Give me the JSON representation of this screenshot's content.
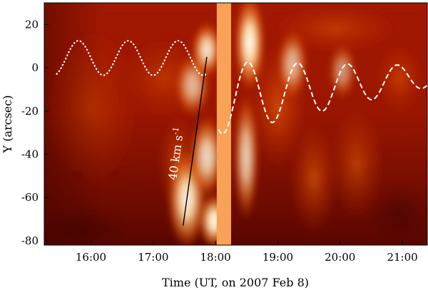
{
  "chart_data": {
    "type": "heatmap",
    "xlabel": "Time (UT, on 2007 Feb 8)",
    "ylabel": "Y (arcsec)",
    "x_unit": "hours UT",
    "xlim": [
      15.25,
      21.4
    ],
    "ylim": [
      -82,
      30
    ],
    "xticks": [
      {
        "value": 16,
        "label": "16:00"
      },
      {
        "value": 17,
        "label": "17:00"
      },
      {
        "value": 18,
        "label": "18:00"
      },
      {
        "value": 19,
        "label": "19:00"
      },
      {
        "value": 20,
        "label": "20:00"
      },
      {
        "value": 21,
        "label": "21:00"
      }
    ],
    "yticks": [
      {
        "value": 20,
        "label": "20"
      },
      {
        "value": 0,
        "label": "0"
      },
      {
        "value": -20,
        "label": "-20"
      },
      {
        "value": -40,
        "label": "-40"
      },
      {
        "value": -60,
        "label": "-60"
      },
      {
        "value": -80,
        "label": "-80"
      }
    ],
    "colormap": [
      "#3a0000",
      "#8b1000",
      "#c83000",
      "#f06a10",
      "#fbb060",
      "#ffffff"
    ],
    "data_gap": {
      "x_start": 18.02,
      "x_end": 18.25,
      "color": "#f7a257"
    },
    "oscillations": [
      {
        "style": "dotted",
        "color": "#ffffff",
        "x_start": 15.45,
        "x_end": 17.85,
        "period_hours": 0.8,
        "amplitude": 8,
        "center_y": 4.5,
        "phase_peak_x": 15.8
      },
      {
        "style": "dashed",
        "color": "#ffffff",
        "x_start": 18.05,
        "x_end": 21.4,
        "period_hours": 0.8,
        "amplitude_start": 17,
        "amplitude_end": 5,
        "center_y_start": -14,
        "center_y_end": -4,
        "phase_peak_x": 18.52
      }
    ],
    "speed_line": {
      "x_start": 17.48,
      "y_start": -73,
      "x_end": 17.86,
      "y_end": 5,
      "color": "#000000"
    },
    "annotation": {
      "text": "40 km s",
      "superscript": "-1",
      "x": 17.43,
      "y": -40,
      "rotation": -82
    }
  }
}
